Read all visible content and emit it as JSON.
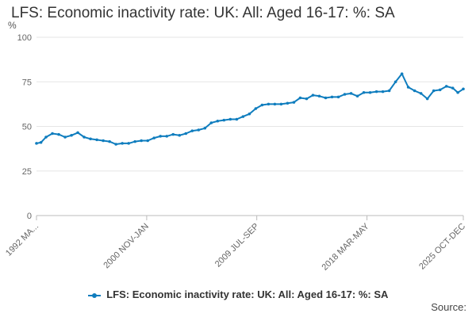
{
  "title": "LFS: Economic inactivity rate: UK: All: Aged 16-17: %: SA",
  "source_label": "Source:",
  "chart_data": {
    "type": "line",
    "title": "LFS: Economic inactivity rate: UK: All: Aged 16-17: %: SA",
    "ylabel": "%",
    "ylim": [
      0,
      100
    ],
    "yticks": [
      0,
      25,
      50,
      75,
      100
    ],
    "x_tick_labels": [
      "1992 MA...",
      "2000 NOV-JAN",
      "2009 JUL-SEP",
      "2018 MAR-MAY",
      "2025 OCT-DEC"
    ],
    "x_tick_positions": [
      1992.25,
      2000.92,
      2009.58,
      2018.25,
      2025.83
    ],
    "x_range": [
      1992.25,
      2025.83
    ],
    "grid": "horizontal",
    "legend_position": "bottom",
    "color": "#0f7dbe",
    "series": [
      {
        "name": "LFS: Economic inactivity rate: UK: All: Aged 16-17: %: SA",
        "x": [
          1992.25,
          1992.6,
          1993.0,
          1993.5,
          1994.0,
          1994.5,
          1995.0,
          1995.5,
          1996.0,
          1996.5,
          1997.0,
          1997.5,
          1998.0,
          1998.5,
          1999.0,
          1999.5,
          2000.0,
          2000.5,
          2001.0,
          2001.5,
          2002.0,
          2002.5,
          2003.0,
          2003.5,
          2004.0,
          2004.5,
          2005.0,
          2005.5,
          2006.0,
          2006.5,
          2007.0,
          2007.5,
          2008.0,
          2008.5,
          2009.0,
          2009.5,
          2010.0,
          2010.5,
          2011.0,
          2011.5,
          2012.0,
          2012.5,
          2013.0,
          2013.5,
          2014.0,
          2014.5,
          2015.0,
          2015.5,
          2016.0,
          2016.5,
          2017.0,
          2017.5,
          2018.0,
          2018.5,
          2019.0,
          2019.5,
          2020.0,
          2020.5,
          2021.0,
          2021.5,
          2022.0,
          2022.5,
          2023.0,
          2023.5,
          2024.0,
          2024.5,
          2025.0,
          2025.4,
          2025.83
        ],
        "values": [
          40.5,
          41.0,
          44.0,
          46.0,
          45.5,
          44.0,
          45.0,
          46.5,
          44.0,
          43.0,
          42.5,
          42.0,
          41.5,
          40.0,
          40.5,
          40.5,
          41.5,
          42.0,
          42.0,
          43.5,
          44.5,
          44.5,
          45.5,
          45.0,
          46.0,
          47.5,
          48.0,
          49.0,
          52.0,
          53.0,
          53.5,
          54.0,
          54.0,
          55.5,
          57.0,
          60.0,
          62.0,
          62.5,
          62.5,
          62.5,
          63.0,
          63.5,
          66.0,
          65.5,
          67.5,
          67.0,
          66.0,
          66.5,
          66.5,
          68.0,
          68.5,
          67.0,
          69.0,
          69.0,
          69.5,
          69.5,
          70.0,
          75.0,
          79.5,
          72.0,
          70.0,
          68.5,
          65.5,
          70.0,
          70.5,
          72.5,
          71.5,
          69.0,
          71.0
        ]
      }
    ]
  }
}
